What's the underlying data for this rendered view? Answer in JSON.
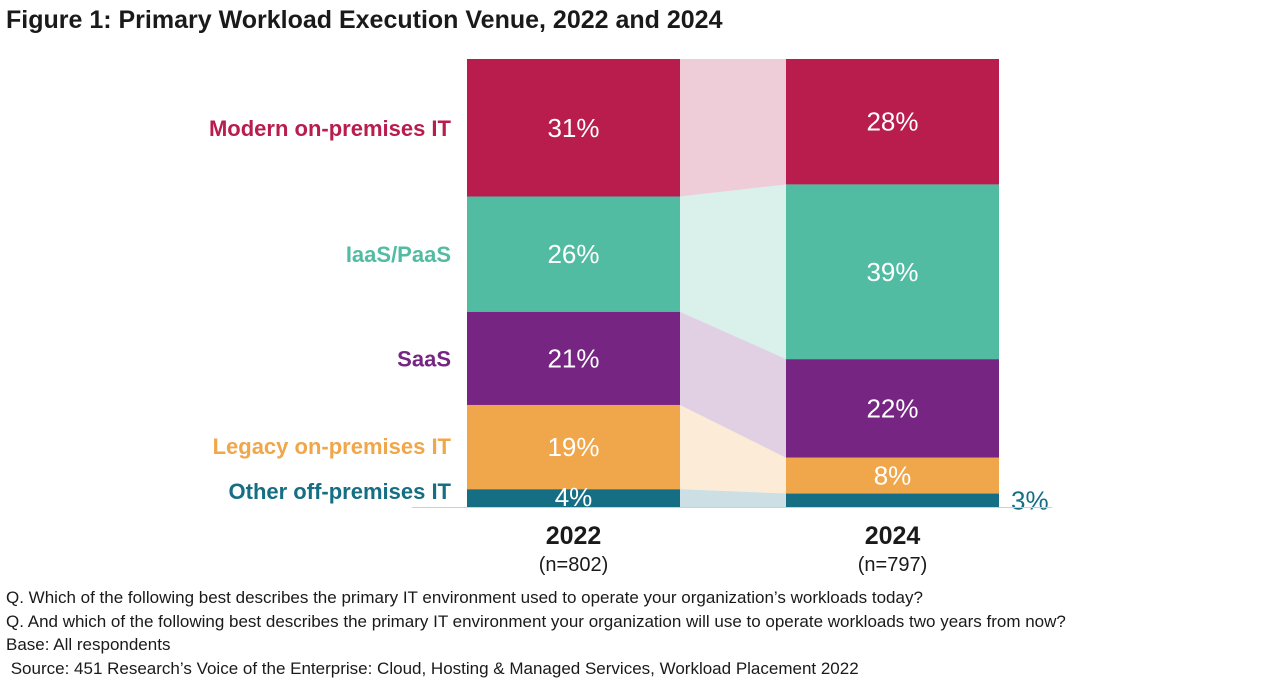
{
  "title": "Figure 1: Primary Workload Execution Venue, 2022 and 2024",
  "chart_data": {
    "type": "stacked-bar-100",
    "categories": [
      "2022",
      "2024"
    ],
    "category_sublabels": [
      "(n=802)",
      "(n=797)"
    ],
    "series": [
      {
        "name": "Modern on-premises IT",
        "color": "#B81D4E",
        "values": [
          31,
          28
        ],
        "labels": [
          "31%",
          "28%"
        ]
      },
      {
        "name": "IaaS/PaaS",
        "color": "#52BCA3",
        "values": [
          26,
          39
        ],
        "labels": [
          "26%",
          "39%"
        ]
      },
      {
        "name": "SaaS",
        "color": "#772583",
        "values": [
          21,
          22
        ],
        "labels": [
          "21%",
          "22%"
        ]
      },
      {
        "name": "Legacy on-premises IT",
        "color": "#F0A64A",
        "values": [
          19,
          8
        ],
        "labels": [
          "19%",
          "8%"
        ]
      },
      {
        "name": "Other off-premises IT",
        "color": "#156E84",
        "values": [
          4,
          3
        ],
        "labels": [
          "4%",
          "3%"
        ]
      }
    ],
    "legend_position": "left",
    "ylim": [
      0,
      100
    ]
  },
  "notes": [
    "Q. Which of the following best describes the primary IT environment used to operate your organization’s workloads today?",
    "Q. And which of the following best describes the primary IT environment your organization will use to operate workloads two years from now?",
    "Base: All respondents",
    " Source: 451 Research’s Voice of the Enterprise: Cloud, Hosting & Managed Services, Workload Placement 2022"
  ]
}
